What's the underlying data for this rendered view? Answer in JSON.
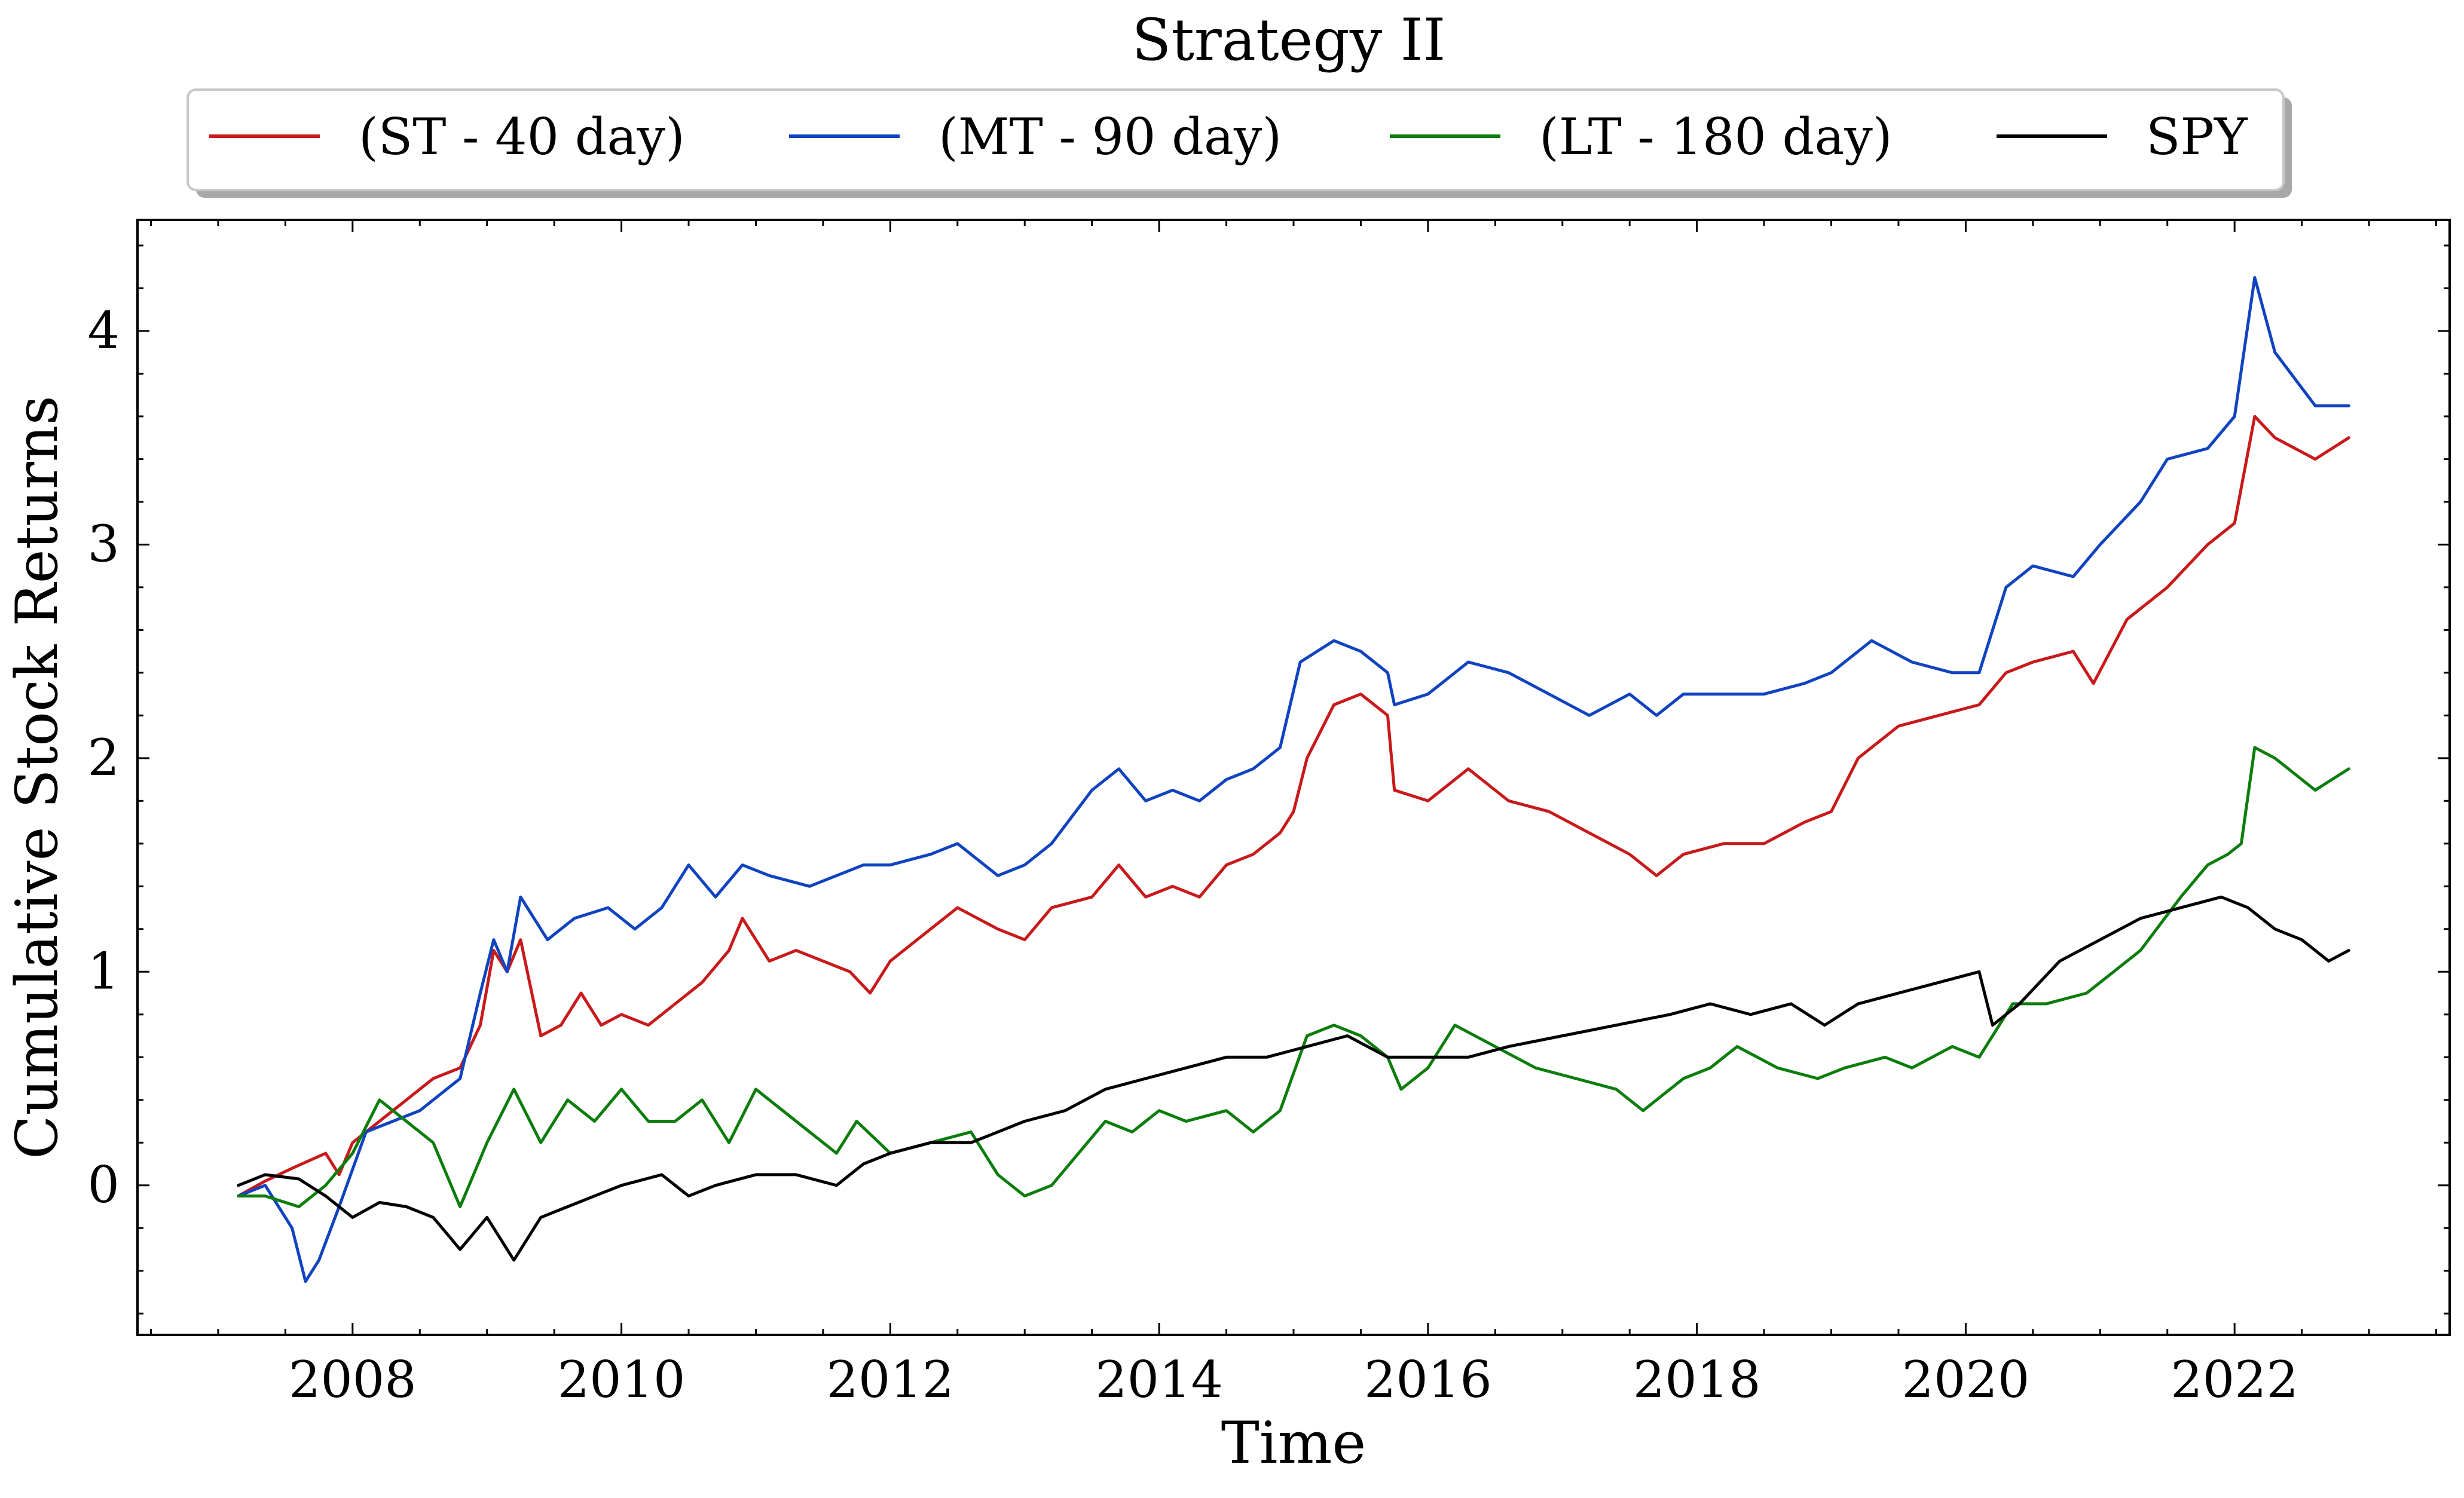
{
  "chart_data": {
    "type": "line",
    "title": "Strategy II",
    "xlabel": "Time",
    "ylabel": "Cumulative Stock Returns",
    "xlim": [
      2006.4,
      2023.6
    ],
    "ylim": [
      -0.7,
      4.52
    ],
    "grid": false,
    "legend_position": "top-center",
    "x_ticks": [
      2008,
      2010,
      2012,
      2014,
      2016,
      2018,
      2020,
      2022
    ],
    "x_tick_labels": [
      "2008",
      "2010",
      "2012",
      "2014",
      "2016",
      "2018",
      "2020",
      "2022"
    ],
    "y_ticks": [
      0,
      1,
      2,
      3,
      4
    ],
    "y_tick_labels": [
      "0",
      "1",
      "2",
      "3",
      "4"
    ],
    "series": [
      {
        "name": "(ST - 40 day)",
        "color": "#c8191b",
        "points": [
          [
            2007.15,
            -0.05
          ],
          [
            2007.35,
            0.02
          ],
          [
            2007.55,
            0.08
          ],
          [
            2007.8,
            0.15
          ],
          [
            2007.9,
            0.05
          ],
          [
            2008.0,
            0.2
          ],
          [
            2008.2,
            0.3
          ],
          [
            2008.4,
            0.4
          ],
          [
            2008.6,
            0.5
          ],
          [
            2008.8,
            0.55
          ],
          [
            2008.95,
            0.75
          ],
          [
            2009.05,
            1.1
          ],
          [
            2009.15,
            1.0
          ],
          [
            2009.25,
            1.15
          ],
          [
            2009.4,
            0.7
          ],
          [
            2009.55,
            0.75
          ],
          [
            2009.7,
            0.9
          ],
          [
            2009.85,
            0.75
          ],
          [
            2010.0,
            0.8
          ],
          [
            2010.2,
            0.75
          ],
          [
            2010.4,
            0.85
          ],
          [
            2010.6,
            0.95
          ],
          [
            2010.8,
            1.1
          ],
          [
            2010.9,
            1.25
          ],
          [
            2011.1,
            1.05
          ],
          [
            2011.3,
            1.1
          ],
          [
            2011.5,
            1.05
          ],
          [
            2011.7,
            1.0
          ],
          [
            2011.85,
            0.9
          ],
          [
            2012.0,
            1.05
          ],
          [
            2012.2,
            1.15
          ],
          [
            2012.5,
            1.3
          ],
          [
            2012.8,
            1.2
          ],
          [
            2013.0,
            1.15
          ],
          [
            2013.2,
            1.3
          ],
          [
            2013.5,
            1.35
          ],
          [
            2013.7,
            1.5
          ],
          [
            2013.9,
            1.35
          ],
          [
            2014.1,
            1.4
          ],
          [
            2014.3,
            1.35
          ],
          [
            2014.5,
            1.5
          ],
          [
            2014.7,
            1.55
          ],
          [
            2014.9,
            1.65
          ],
          [
            2015.0,
            1.75
          ],
          [
            2015.1,
            2.0
          ],
          [
            2015.3,
            2.25
          ],
          [
            2015.5,
            2.3
          ],
          [
            2015.7,
            2.2
          ],
          [
            2015.75,
            1.85
          ],
          [
            2016.0,
            1.8
          ],
          [
            2016.3,
            1.95
          ],
          [
            2016.6,
            1.8
          ],
          [
            2016.9,
            1.75
          ],
          [
            2017.2,
            1.65
          ],
          [
            2017.5,
            1.55
          ],
          [
            2017.7,
            1.45
          ],
          [
            2017.9,
            1.55
          ],
          [
            2018.2,
            1.6
          ],
          [
            2018.5,
            1.6
          ],
          [
            2018.8,
            1.7
          ],
          [
            2019.0,
            1.75
          ],
          [
            2019.2,
            2.0
          ],
          [
            2019.5,
            2.15
          ],
          [
            2019.8,
            2.2
          ],
          [
            2020.1,
            2.25
          ],
          [
            2020.3,
            2.4
          ],
          [
            2020.5,
            2.45
          ],
          [
            2020.8,
            2.5
          ],
          [
            2020.95,
            2.35
          ],
          [
            2021.2,
            2.65
          ],
          [
            2021.5,
            2.8
          ],
          [
            2021.8,
            3.0
          ],
          [
            2022.0,
            3.1
          ],
          [
            2022.15,
            3.6
          ],
          [
            2022.3,
            3.5
          ],
          [
            2022.6,
            3.4
          ],
          [
            2022.85,
            3.5
          ]
        ]
      },
      {
        "name": "(MT - 90 day)",
        "color": "#1043c0",
        "points": [
          [
            2007.15,
            -0.05
          ],
          [
            2007.35,
            0.0
          ],
          [
            2007.55,
            -0.2
          ],
          [
            2007.65,
            -0.45
          ],
          [
            2007.75,
            -0.35
          ],
          [
            2007.9,
            -0.1
          ],
          [
            2008.1,
            0.25
          ],
          [
            2008.3,
            0.3
          ],
          [
            2008.5,
            0.35
          ],
          [
            2008.8,
            0.5
          ],
          [
            2008.95,
            0.9
          ],
          [
            2009.05,
            1.15
          ],
          [
            2009.15,
            1.0
          ],
          [
            2009.25,
            1.35
          ],
          [
            2009.45,
            1.15
          ],
          [
            2009.65,
            1.25
          ],
          [
            2009.9,
            1.3
          ],
          [
            2010.1,
            1.2
          ],
          [
            2010.3,
            1.3
          ],
          [
            2010.5,
            1.5
          ],
          [
            2010.7,
            1.35
          ],
          [
            2010.9,
            1.5
          ],
          [
            2011.1,
            1.45
          ],
          [
            2011.4,
            1.4
          ],
          [
            2011.6,
            1.45
          ],
          [
            2011.8,
            1.5
          ],
          [
            2012.0,
            1.5
          ],
          [
            2012.3,
            1.55
          ],
          [
            2012.5,
            1.6
          ],
          [
            2012.8,
            1.45
          ],
          [
            2013.0,
            1.5
          ],
          [
            2013.2,
            1.6
          ],
          [
            2013.5,
            1.85
          ],
          [
            2013.7,
            1.95
          ],
          [
            2013.9,
            1.8
          ],
          [
            2014.1,
            1.85
          ],
          [
            2014.3,
            1.8
          ],
          [
            2014.5,
            1.9
          ],
          [
            2014.7,
            1.95
          ],
          [
            2014.9,
            2.05
          ],
          [
            2015.05,
            2.45
          ],
          [
            2015.3,
            2.55
          ],
          [
            2015.5,
            2.5
          ],
          [
            2015.7,
            2.4
          ],
          [
            2015.75,
            2.25
          ],
          [
            2016.0,
            2.3
          ],
          [
            2016.3,
            2.45
          ],
          [
            2016.6,
            2.4
          ],
          [
            2016.9,
            2.3
          ],
          [
            2017.2,
            2.2
          ],
          [
            2017.5,
            2.3
          ],
          [
            2017.7,
            2.2
          ],
          [
            2017.9,
            2.3
          ],
          [
            2018.2,
            2.3
          ],
          [
            2018.5,
            2.3
          ],
          [
            2018.8,
            2.35
          ],
          [
            2019.0,
            2.4
          ],
          [
            2019.3,
            2.55
          ],
          [
            2019.6,
            2.45
          ],
          [
            2019.9,
            2.4
          ],
          [
            2020.1,
            2.4
          ],
          [
            2020.3,
            2.8
          ],
          [
            2020.5,
            2.9
          ],
          [
            2020.8,
            2.85
          ],
          [
            2021.0,
            3.0
          ],
          [
            2021.3,
            3.2
          ],
          [
            2021.5,
            3.4
          ],
          [
            2021.8,
            3.45
          ],
          [
            2022.0,
            3.6
          ],
          [
            2022.15,
            4.25
          ],
          [
            2022.3,
            3.9
          ],
          [
            2022.6,
            3.65
          ],
          [
            2022.85,
            3.65
          ]
        ]
      },
      {
        "name": "(LT - 180 day)",
        "color": "#0c7d0c",
        "points": [
          [
            2007.15,
            -0.05
          ],
          [
            2007.35,
            -0.05
          ],
          [
            2007.6,
            -0.1
          ],
          [
            2007.8,
            0.0
          ],
          [
            2008.0,
            0.15
          ],
          [
            2008.2,
            0.4
          ],
          [
            2008.4,
            0.3
          ],
          [
            2008.6,
            0.2
          ],
          [
            2008.8,
            -0.1
          ],
          [
            2009.0,
            0.2
          ],
          [
            2009.2,
            0.45
          ],
          [
            2009.4,
            0.2
          ],
          [
            2009.6,
            0.4
          ],
          [
            2009.8,
            0.3
          ],
          [
            2010.0,
            0.45
          ],
          [
            2010.2,
            0.3
          ],
          [
            2010.4,
            0.3
          ],
          [
            2010.6,
            0.4
          ],
          [
            2010.8,
            0.2
          ],
          [
            2011.0,
            0.45
          ],
          [
            2011.3,
            0.3
          ],
          [
            2011.6,
            0.15
          ],
          [
            2011.75,
            0.3
          ],
          [
            2012.0,
            0.15
          ],
          [
            2012.3,
            0.2
          ],
          [
            2012.6,
            0.25
          ],
          [
            2012.8,
            0.05
          ],
          [
            2013.0,
            -0.05
          ],
          [
            2013.2,
            0.0
          ],
          [
            2013.4,
            0.15
          ],
          [
            2013.6,
            0.3
          ],
          [
            2013.8,
            0.25
          ],
          [
            2014.0,
            0.35
          ],
          [
            2014.2,
            0.3
          ],
          [
            2014.5,
            0.35
          ],
          [
            2014.7,
            0.25
          ],
          [
            2014.9,
            0.35
          ],
          [
            2015.1,
            0.7
          ],
          [
            2015.3,
            0.75
          ],
          [
            2015.5,
            0.7
          ],
          [
            2015.7,
            0.6
          ],
          [
            2015.8,
            0.45
          ],
          [
            2016.0,
            0.55
          ],
          [
            2016.2,
            0.75
          ],
          [
            2016.5,
            0.65
          ],
          [
            2016.8,
            0.55
          ],
          [
            2017.1,
            0.5
          ],
          [
            2017.4,
            0.45
          ],
          [
            2017.6,
            0.35
          ],
          [
            2017.9,
            0.5
          ],
          [
            2018.1,
            0.55
          ],
          [
            2018.3,
            0.65
          ],
          [
            2018.6,
            0.55
          ],
          [
            2018.9,
            0.5
          ],
          [
            2019.1,
            0.55
          ],
          [
            2019.4,
            0.6
          ],
          [
            2019.6,
            0.55
          ],
          [
            2019.9,
            0.65
          ],
          [
            2020.1,
            0.6
          ],
          [
            2020.2,
            0.7
          ],
          [
            2020.35,
            0.85
          ],
          [
            2020.6,
            0.85
          ],
          [
            2020.9,
            0.9
          ],
          [
            2021.1,
            1.0
          ],
          [
            2021.3,
            1.1
          ],
          [
            2021.6,
            1.35
          ],
          [
            2021.8,
            1.5
          ],
          [
            2021.95,
            1.55
          ],
          [
            2022.05,
            1.6
          ],
          [
            2022.15,
            2.05
          ],
          [
            2022.3,
            2.0
          ],
          [
            2022.6,
            1.85
          ],
          [
            2022.85,
            1.95
          ]
        ]
      },
      {
        "name": "SPY",
        "color": "#000000",
        "points": [
          [
            2007.15,
            0.0
          ],
          [
            2007.35,
            0.05
          ],
          [
            2007.6,
            0.03
          ],
          [
            2007.8,
            -0.05
          ],
          [
            2008.0,
            -0.15
          ],
          [
            2008.2,
            -0.08
          ],
          [
            2008.4,
            -0.1
          ],
          [
            2008.6,
            -0.15
          ],
          [
            2008.8,
            -0.3
          ],
          [
            2009.0,
            -0.15
          ],
          [
            2009.2,
            -0.35
          ],
          [
            2009.4,
            -0.15
          ],
          [
            2009.6,
            -0.1
          ],
          [
            2009.8,
            -0.05
          ],
          [
            2010.0,
            0.0
          ],
          [
            2010.3,
            0.05
          ],
          [
            2010.5,
            -0.05
          ],
          [
            2010.7,
            0.0
          ],
          [
            2011.0,
            0.05
          ],
          [
            2011.3,
            0.05
          ],
          [
            2011.6,
            0.0
          ],
          [
            2011.8,
            0.1
          ],
          [
            2012.0,
            0.15
          ],
          [
            2012.3,
            0.2
          ],
          [
            2012.6,
            0.2
          ],
          [
            2012.8,
            0.25
          ],
          [
            2013.0,
            0.3
          ],
          [
            2013.3,
            0.35
          ],
          [
            2013.6,
            0.45
          ],
          [
            2013.9,
            0.5
          ],
          [
            2014.2,
            0.55
          ],
          [
            2014.5,
            0.6
          ],
          [
            2014.8,
            0.6
          ],
          [
            2015.1,
            0.65
          ],
          [
            2015.4,
            0.7
          ],
          [
            2015.7,
            0.6
          ],
          [
            2016.0,
            0.6
          ],
          [
            2016.3,
            0.6
          ],
          [
            2016.6,
            0.65
          ],
          [
            2017.0,
            0.7
          ],
          [
            2017.4,
            0.75
          ],
          [
            2017.8,
            0.8
          ],
          [
            2018.1,
            0.85
          ],
          [
            2018.4,
            0.8
          ],
          [
            2018.7,
            0.85
          ],
          [
            2018.95,
            0.75
          ],
          [
            2019.2,
            0.85
          ],
          [
            2019.5,
            0.9
          ],
          [
            2019.8,
            0.95
          ],
          [
            2020.1,
            1.0
          ],
          [
            2020.2,
            0.75
          ],
          [
            2020.4,
            0.85
          ],
          [
            2020.7,
            1.05
          ],
          [
            2021.0,
            1.15
          ],
          [
            2021.3,
            1.25
          ],
          [
            2021.6,
            1.3
          ],
          [
            2021.9,
            1.35
          ],
          [
            2022.1,
            1.3
          ],
          [
            2022.3,
            1.2
          ],
          [
            2022.5,
            1.15
          ],
          [
            2022.7,
            1.05
          ],
          [
            2022.85,
            1.1
          ]
        ]
      }
    ]
  }
}
